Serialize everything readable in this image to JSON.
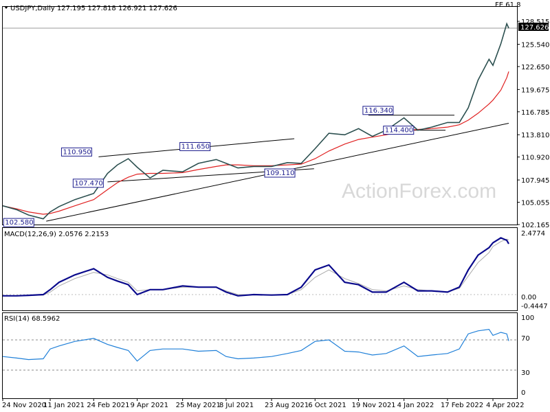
{
  "header": {
    "symbol_line": "USDJPY,Daily  127.195 127.818 126.921 127.626",
    "fib_label": "FE 61.8"
  },
  "price_badge": "127.626",
  "watermark": "ActionForex.com",
  "macd_panel": {
    "label": "MACD(12,26,9) 2.0576 2.2153",
    "ticks": [
      "2.4774",
      "0.00",
      "-0.4447"
    ]
  },
  "rsi_panel": {
    "label": "RSI(14) 68.5962",
    "ticks": [
      "100",
      "70",
      "30",
      "0"
    ]
  },
  "x_ticks": [
    "24 Nov 2020",
    "11 Jan 2021",
    "24 Feb 2021",
    "9 Apr 2021",
    "25 May 2021",
    "8 Jul 2021",
    "23 Aug 2021",
    "6 Oct 2021",
    "19 Nov 2021",
    "4 Jan 2022",
    "17 Feb 2022",
    "4 Apr 2022"
  ],
  "colors": {
    "price": "#2b4f4f",
    "moving_average": "#e02020",
    "trendline": "#000000",
    "macd": "#0a0a8c",
    "signal": "#aaaaaa",
    "rsi": "#1e7fd8",
    "annotation_text": "#1a1a8c"
  },
  "chart_data": {
    "type": "line",
    "title": "USDJPY,Daily",
    "y_ticks": [
      "128.515",
      "125.540",
      "122.650",
      "119.675",
      "116.785",
      "113.810",
      "110.920",
      "107.945",
      "105.055",
      "102.165"
    ],
    "ylim": [
      102.165,
      130.3
    ],
    "x_dates": [
      "2020-11-24",
      "2020-12-08",
      "2020-12-20",
      "2021-01-04",
      "2021-01-11",
      "2021-01-20",
      "2021-02-05",
      "2021-02-24",
      "2021-03-10",
      "2021-03-20",
      "2021-03-31",
      "2021-04-09",
      "2021-04-22",
      "2021-05-05",
      "2021-05-25",
      "2021-06-10",
      "2021-06-28",
      "2021-07-08",
      "2021-07-20",
      "2021-08-05",
      "2021-08-23",
      "2021-09-08",
      "2021-09-22",
      "2021-10-06",
      "2021-10-20",
      "2021-11-05",
      "2021-11-19",
      "2021-12-03",
      "2021-12-17",
      "2022-01-04",
      "2022-01-18",
      "2022-02-01",
      "2022-02-17",
      "2022-03-01",
      "2022-03-10",
      "2022-03-20",
      "2022-03-31",
      "2022-04-04",
      "2022-04-12",
      "2022-04-18",
      "2022-04-20"
    ],
    "series": [
      {
        "values": [
          104.6,
          104.1,
          103.4,
          102.9,
          103.8,
          104.5,
          105.4,
          106.2,
          108.8,
          109.9,
          110.7,
          109.6,
          108.2,
          109.2,
          109.0,
          110.1,
          110.6,
          110.1,
          109.5,
          109.7,
          109.7,
          110.2,
          110.1,
          112.0,
          114.0,
          113.8,
          114.6,
          113.6,
          114.4,
          116.0,
          114.4,
          114.8,
          115.4,
          115.4,
          117.3,
          120.9,
          123.6,
          122.8,
          125.6,
          128.2,
          127.626
        ]
      },
      {
        "values": [
          104.6,
          104.2,
          103.8,
          103.5,
          103.6,
          103.9,
          104.6,
          105.4,
          106.7,
          107.6,
          108.3,
          108.7,
          108.8,
          108.8,
          108.9,
          109.3,
          109.7,
          109.9,
          109.9,
          109.8,
          109.8,
          109.9,
          110.0,
          110.7,
          111.7,
          112.6,
          113.2,
          113.5,
          113.8,
          114.3,
          114.5,
          114.6,
          114.8,
          115.1,
          115.7,
          116.6,
          117.8,
          118.3,
          119.6,
          121.2,
          122.0
        ]
      }
    ],
    "annotations": [
      "110.950",
      "111.650",
      "107.470",
      "109.110",
      "116.340",
      "114.400",
      "102.580"
    ],
    "trendlines": [
      {
        "points": [
          [
            "2021-01-07",
            102.6
          ],
          [
            "2022-04-20",
            115.3
          ]
        ]
      },
      {
        "points": [
          [
            "2021-03-01",
            110.95
          ],
          [
            "2021-09-15",
            113.3
          ]
        ]
      },
      {
        "points": [
          [
            "2021-03-10",
            107.7
          ],
          [
            "2021-10-05",
            109.4
          ]
        ]
      },
      {
        "points": [
          [
            "2021-11-29",
            116.34
          ],
          [
            "2022-02-24",
            116.34
          ]
        ]
      },
      {
        "points": [
          [
            "2021-12-17",
            114.4
          ],
          [
            "2022-02-15",
            114.4
          ]
        ]
      }
    ],
    "macd": {
      "ylim": [
        -0.4447,
        2.4774
      ],
      "macd": [
        -0.05,
        -0.05,
        -0.03,
        0.0,
        0.2,
        0.5,
        0.8,
        1.05,
        0.7,
        0.55,
        0.4,
        0.0,
        0.2,
        0.2,
        0.35,
        0.3,
        0.3,
        0.1,
        -0.05,
        0.0,
        -0.02,
        0.0,
        0.3,
        1.0,
        1.2,
        0.5,
        0.4,
        0.1,
        0.1,
        0.5,
        0.15,
        0.15,
        0.1,
        0.3,
        1.0,
        1.6,
        1.9,
        2.1,
        2.3,
        2.2,
        2.0576
      ],
      "signal": [
        -0.05,
        -0.05,
        -0.04,
        -0.02,
        0.1,
        0.35,
        0.65,
        0.9,
        0.8,
        0.65,
        0.5,
        0.15,
        0.2,
        0.2,
        0.3,
        0.3,
        0.3,
        0.15,
        0.0,
        0.0,
        0.0,
        0.0,
        0.2,
        0.7,
        1.0,
        0.65,
        0.45,
        0.2,
        0.15,
        0.35,
        0.2,
        0.15,
        0.12,
        0.25,
        0.75,
        1.3,
        1.7,
        1.95,
        2.15,
        2.25,
        2.2153
      ]
    },
    "rsi": {
      "ylim": [
        0,
        100
      ],
      "levels": [
        70,
        30
      ],
      "values": [
        48,
        46,
        44,
        45,
        58,
        62,
        68,
        72,
        64,
        60,
        56,
        42,
        56,
        58,
        58,
        55,
        56,
        48,
        45,
        46,
        48,
        52,
        56,
        68,
        70,
        55,
        54,
        50,
        52,
        62,
        48,
        50,
        52,
        58,
        78,
        82,
        84,
        76,
        80,
        78,
        68.5962
      ]
    }
  }
}
